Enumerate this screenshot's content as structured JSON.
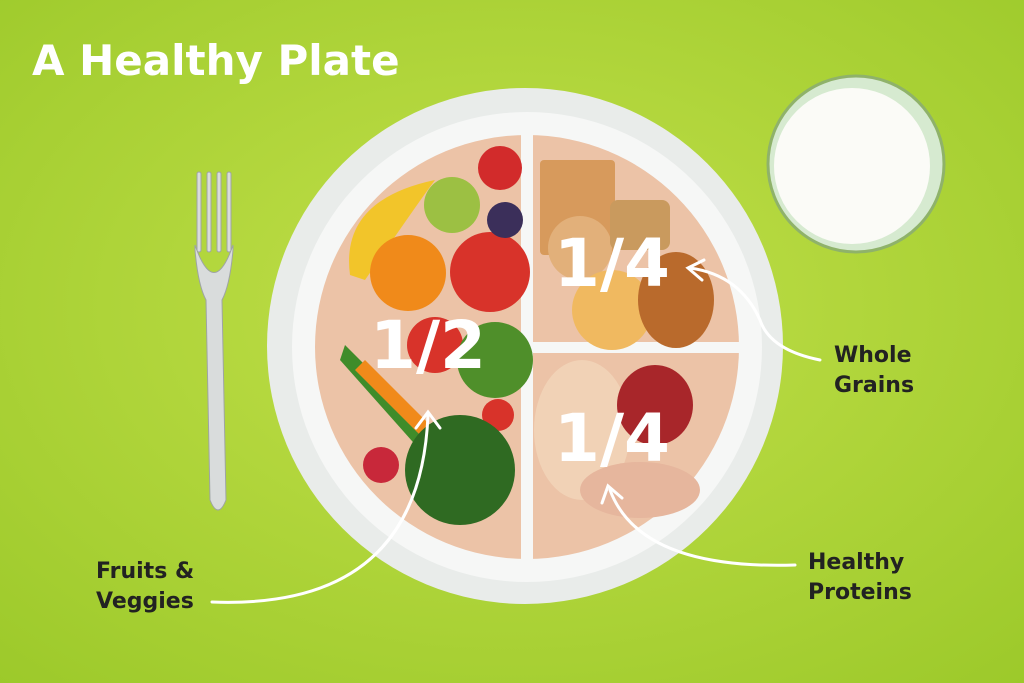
{
  "title": "A Healthy Plate",
  "sections": [
    {
      "fraction": "1/2",
      "label": [
        "Fruits &",
        "Veggies"
      ]
    },
    {
      "fraction": "1/4",
      "label": [
        "Whole",
        "Grains"
      ]
    },
    {
      "fraction": "1/4",
      "label": [
        "Healthy",
        "Proteins"
      ]
    }
  ]
}
